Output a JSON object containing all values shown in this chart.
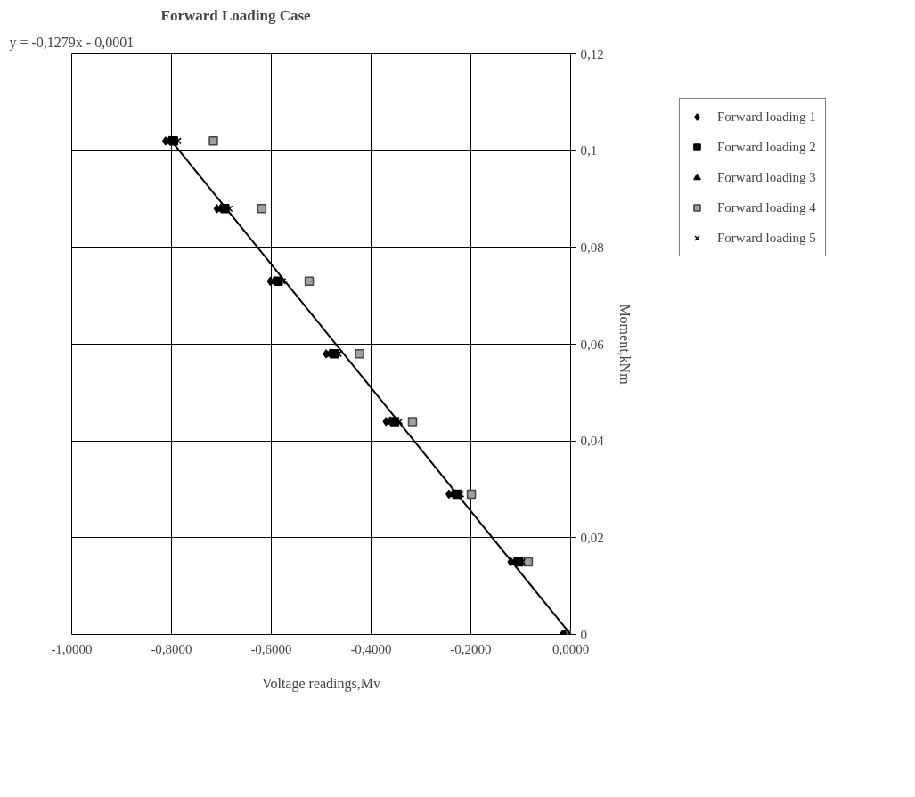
{
  "chart_data": {
    "type": "scatter",
    "title": "Forward Loading Case",
    "xlabel": "Voltage readings,Mv",
    "ylabel": "Moment,kNm",
    "annotations": [
      "y = -0,1279x - 0,0001"
    ],
    "series": [
      {
        "name": "Forward loading 1",
        "color": "#000000",
        "marker": "diamond",
        "x": [
          -0.812,
          -0.709,
          -0.602,
          -0.49,
          -0.37,
          -0.244,
          -0.12,
          -0.016
        ],
        "values": [
          0.102,
          0.088,
          0.073,
          0.058,
          0.044,
          0.029,
          0.015,
          0
        ]
      },
      {
        "name": "Forward loading 2",
        "color": "#000000",
        "marker": "square",
        "x": [
          -0.796,
          -0.693,
          -0.586,
          -0.474,
          -0.353,
          -0.228,
          -0.104,
          -0.005
        ],
        "values": [
          0.102,
          0.088,
          0.073,
          0.058,
          0.044,
          0.029,
          0.015,
          0
        ]
      },
      {
        "name": "Forward loading 3",
        "color": "#000000",
        "marker": "triangle",
        "x": [
          -0.804,
          -0.701,
          -0.594,
          -0.482,
          -0.362,
          -0.236,
          -0.112,
          -0.01
        ],
        "values": [
          0.102,
          0.088,
          0.073,
          0.058,
          0.044,
          0.029,
          0.015,
          0
        ]
      },
      {
        "name": "Forward loading 4",
        "color": "#a0a0a0",
        "marker": "square",
        "x": [
          -0.716,
          -0.619,
          -0.524,
          -0.423,
          -0.317,
          -0.199,
          -0.085,
          0
        ],
        "values": [
          0.102,
          0.088,
          0.073,
          0.058,
          0.044,
          0.029,
          0.015,
          0
        ]
      },
      {
        "name": "Forward loading 5",
        "color": "#000000",
        "marker": "cross",
        "x": [
          -0.787,
          -0.684,
          -0.577,
          -0.465,
          -0.343,
          -0.22,
          -0.097,
          0
        ],
        "values": [
          0.102,
          0.088,
          0.073,
          0.058,
          0.044,
          0.029,
          0.015,
          0
        ]
      },
      {
        "type": "line",
        "color": "#000000",
        "x": [
          -0.8,
          0
        ],
        "values": [
          0.102,
          0
        ]
      }
    ],
    "xlim": [
      -1.0,
      0.0
    ],
    "ylim": [
      0,
      0.12
    ],
    "xticks": [
      {
        "value": -1.0,
        "label": "-1,0000"
      },
      {
        "value": -0.8,
        "label": "-0,8000"
      },
      {
        "value": -0.6,
        "label": "-0,6000"
      },
      {
        "value": -0.4,
        "label": "-0,4000"
      },
      {
        "value": -0.2,
        "label": "-0,2000"
      },
      {
        "value": 0.0,
        "label": "0,0000"
      }
    ],
    "yticks": [
      0,
      {
        "value": 0.02,
        "label": "0,02"
      },
      {
        "value": 0.04,
        "label": "0,04"
      },
      {
        "value": 0.06,
        "label": "0,06"
      },
      {
        "value": 0.08,
        "label": "0,08"
      },
      {
        "value": 0.1,
        "label": "0,1"
      },
      {
        "value": 0.12,
        "label": "0,12"
      }
    ],
    "grid": true,
    "legend": "top right"
  }
}
